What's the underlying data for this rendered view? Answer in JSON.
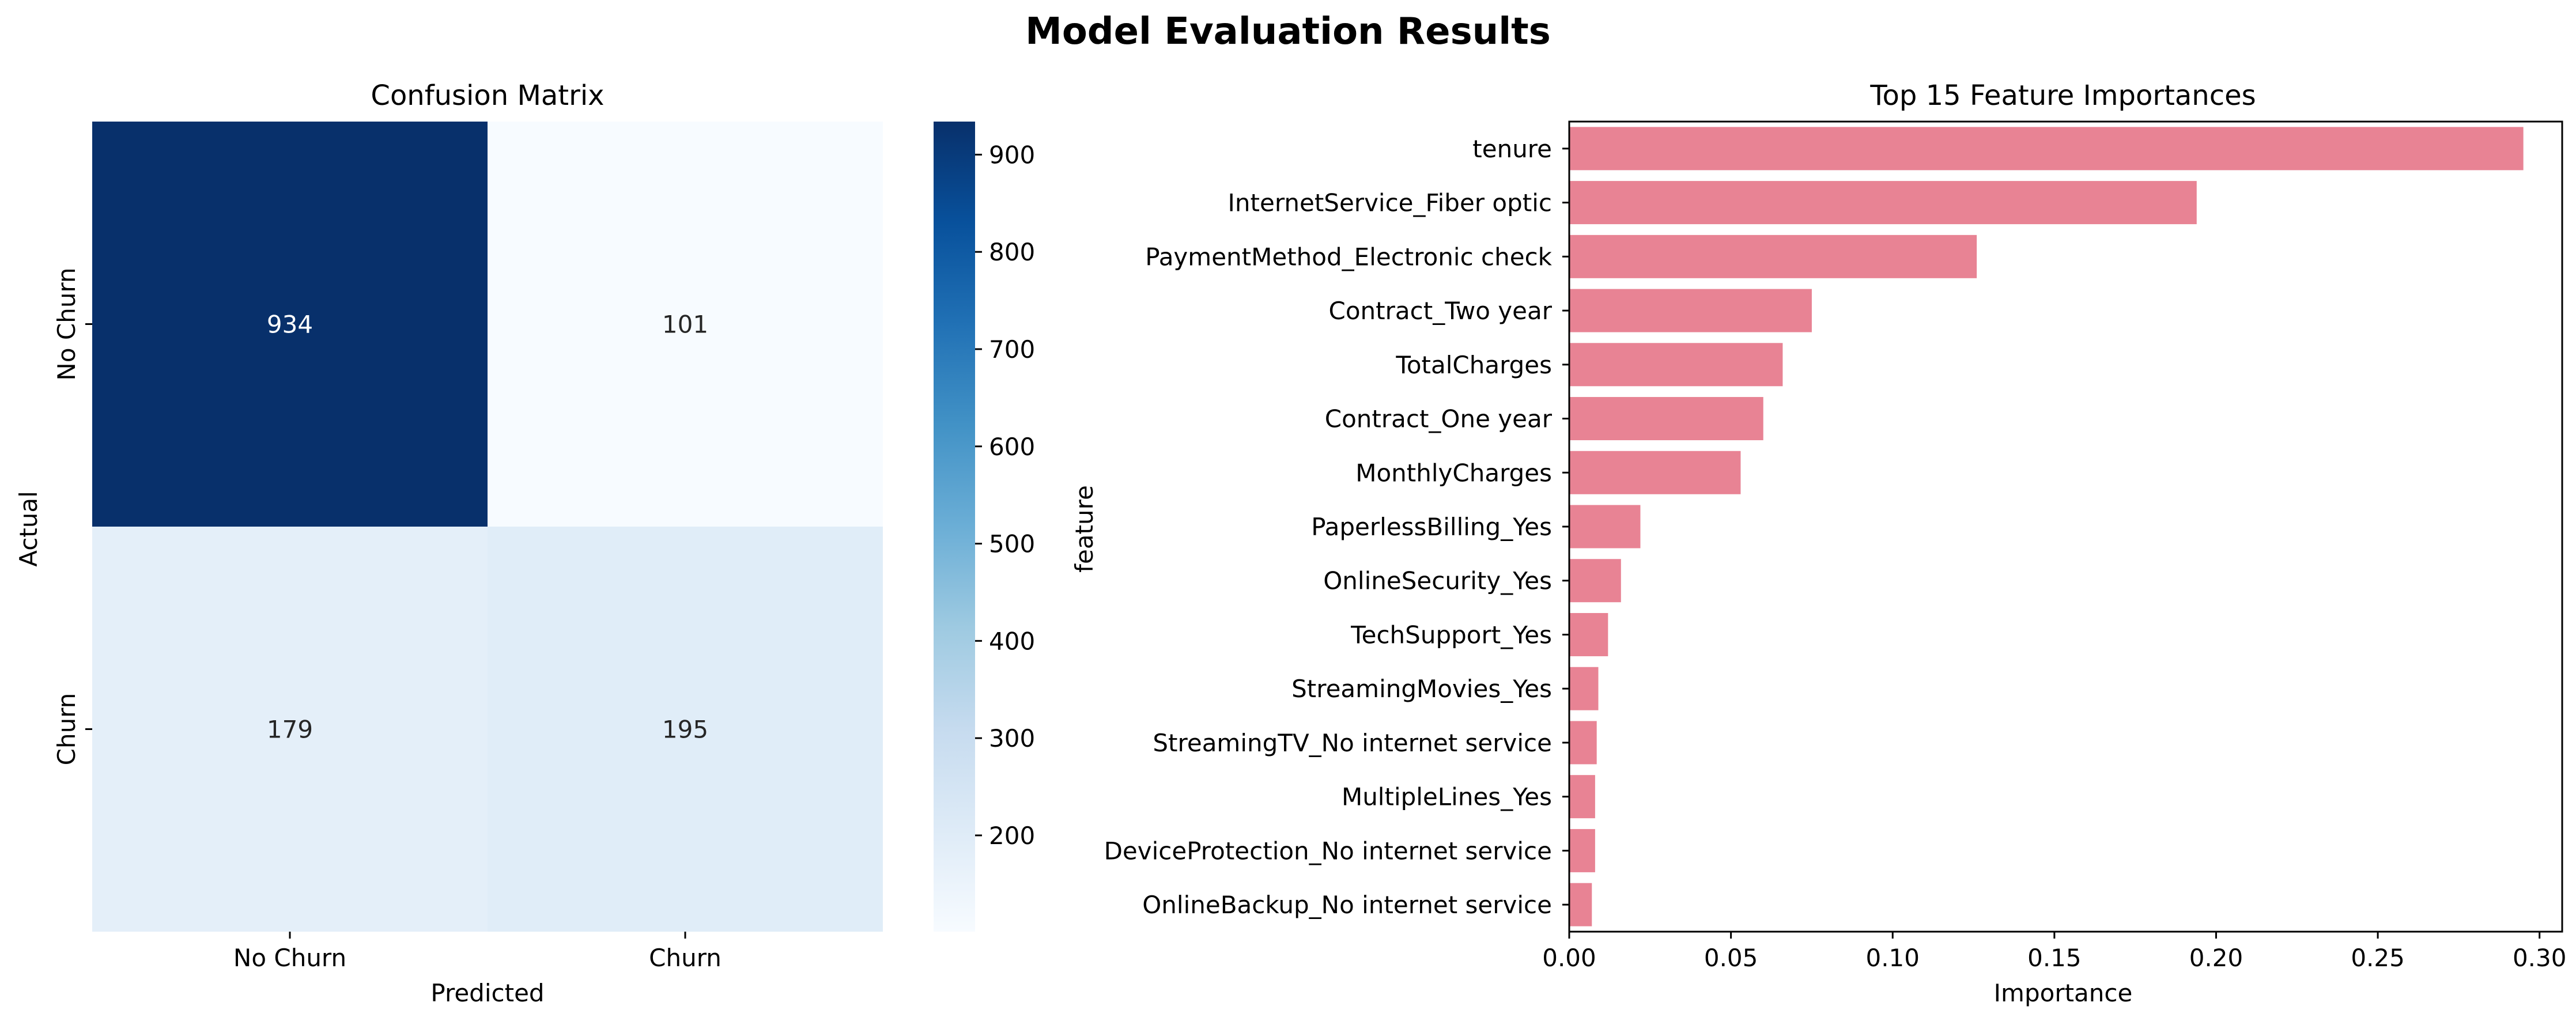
{
  "figure": {
    "title": "Model Evaluation Results"
  },
  "chart_data": [
    {
      "type": "heatmap",
      "title": "Confusion Matrix",
      "xlabel": "Predicted",
      "ylabel": "Actual",
      "x_categories": [
        "No Churn",
        "Churn"
      ],
      "y_categories": [
        "No Churn",
        "Churn"
      ],
      "values": [
        [
          934,
          101
        ],
        [
          179,
          195
        ]
      ],
      "colormap": "Blues",
      "colorbar": {
        "min": 101,
        "max": 934,
        "ticks": [
          200,
          300,
          400,
          500,
          600,
          700,
          800,
          900
        ]
      },
      "low_color": "#f7fbff",
      "high_color": "#08306b"
    },
    {
      "type": "bar",
      "orientation": "horizontal",
      "title": "Top 15 Feature Importances",
      "xlabel": "Importance",
      "ylabel": "feature",
      "categories": [
        "tenure",
        "InternetService_Fiber optic",
        "PaymentMethod_Electronic check",
        "Contract_Two year",
        "TotalCharges",
        "Contract_One year",
        "MonthlyCharges",
        "PaperlessBilling_Yes",
        "OnlineSecurity_Yes",
        "TechSupport_Yes",
        "StreamingMovies_Yes",
        "StreamingTV_No internet service",
        "MultipleLines_Yes",
        "DeviceProtection_No internet service",
        "OnlineBackup_No internet service"
      ],
      "values": [
        0.295,
        0.194,
        0.126,
        0.075,
        0.066,
        0.06,
        0.053,
        0.022,
        0.016,
        0.012,
        0.009,
        0.0085,
        0.008,
        0.008,
        0.007
      ],
      "xlim": [
        0,
        0.307
      ],
      "xticks": [
        "0.00",
        "0.05",
        "0.10",
        "0.15",
        "0.20",
        "0.25",
        "0.30"
      ],
      "bar_color": "#e88394",
      "grid": false
    }
  ]
}
